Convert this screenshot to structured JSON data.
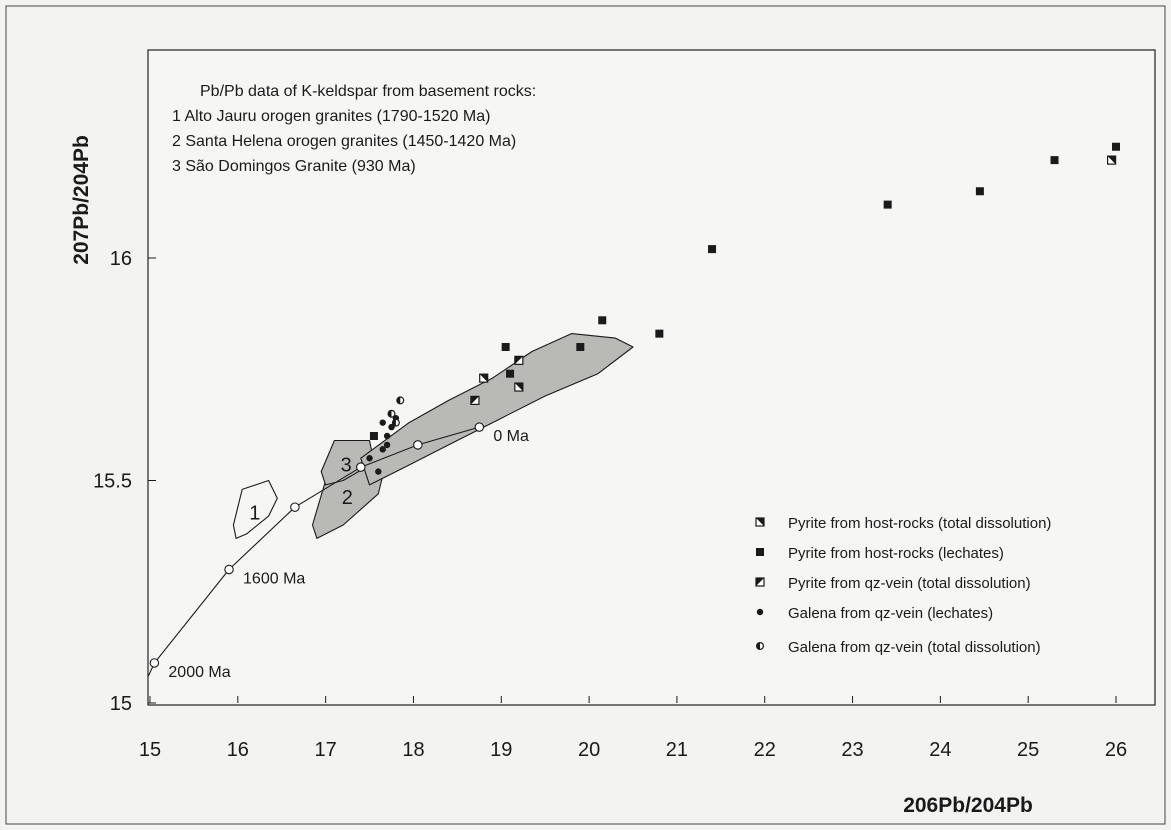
{
  "chart_data": {
    "type": "scatter",
    "title": "",
    "xlabel": "206Pb/204Pb",
    "ylabel": "207Pb/204Pb",
    "xlim": [
      15,
      26.5
    ],
    "ylim": [
      15,
      16.25
    ],
    "x_ticks": [
      "15",
      "16",
      "17",
      "18",
      "19",
      "20",
      "21",
      "22",
      "23",
      "24",
      "25",
      "26"
    ],
    "y_ticks": [
      "15",
      "15.5",
      "16"
    ],
    "grid": false,
    "legend_position": "bottom-right",
    "annotation_block": {
      "heading": "Pb/Pb data of K-keldspar from basement rocks:",
      "items": [
        "1  Alto Jauru orogen granites  (1790-1520 Ma)",
        "2  Santa Helena orogen granites (1450-1420 Ma)",
        "3  São Domingos Granite (930 Ma)"
      ]
    },
    "growth_curve": {
      "points": [
        {
          "x": 15.05,
          "y": 15.09,
          "label": "2000 Ma"
        },
        {
          "x": 15.9,
          "y": 15.3,
          "label": "1600 Ma"
        },
        {
          "x": 16.65,
          "y": 15.44,
          "label": ""
        },
        {
          "x": 17.4,
          "y": 15.53,
          "label": ""
        },
        {
          "x": 18.05,
          "y": 15.58,
          "label": ""
        },
        {
          "x": 18.75,
          "y": 15.62,
          "label": "0 Ma"
        }
      ]
    },
    "fields": [
      {
        "label": "1",
        "outline": [
          [
            15.95,
            15.4
          ],
          [
            16.05,
            15.48
          ],
          [
            16.35,
            15.5
          ],
          [
            16.45,
            15.46
          ],
          [
            16.35,
            15.42
          ],
          [
            16.1,
            15.38
          ],
          [
            15.98,
            15.37
          ]
        ],
        "fill": false
      },
      {
        "label": "2",
        "outline": [
          [
            16.85,
            15.4
          ],
          [
            17.0,
            15.5
          ],
          [
            17.35,
            15.57
          ],
          [
            17.7,
            15.55
          ],
          [
            17.6,
            15.47
          ],
          [
            17.2,
            15.4
          ],
          [
            16.9,
            15.37
          ]
        ],
        "fill": true
      },
      {
        "label": "3",
        "outline": [
          [
            16.95,
            15.52
          ],
          [
            17.1,
            15.59
          ],
          [
            17.5,
            15.59
          ],
          [
            17.55,
            15.54
          ],
          [
            17.2,
            15.5
          ],
          [
            17.0,
            15.49
          ]
        ],
        "fill": true
      },
      {
        "label": "",
        "outline": [
          [
            17.4,
            15.55
          ],
          [
            17.95,
            15.63
          ],
          [
            18.4,
            15.68
          ],
          [
            18.9,
            15.73
          ],
          [
            19.35,
            15.79
          ],
          [
            19.8,
            15.83
          ],
          [
            20.3,
            15.82
          ],
          [
            20.5,
            15.8
          ],
          [
            20.1,
            15.74
          ],
          [
            19.5,
            15.69
          ],
          [
            19.0,
            15.64
          ],
          [
            18.4,
            15.58
          ],
          [
            17.9,
            15.53
          ],
          [
            17.5,
            15.49
          ]
        ],
        "fill": true
      }
    ],
    "series": [
      {
        "name": "Pyrite from host-rocks (total dissolution)",
        "marker": "half-square",
        "x": [
          18.8,
          19.2,
          25.95
        ],
        "y": [
          15.73,
          15.71,
          16.22
        ]
      },
      {
        "name": "Pyrite from host-rocks (lechates)",
        "marker": "square",
        "x": [
          17.55,
          19.05,
          19.1,
          19.9,
          20.15,
          20.8,
          21.4,
          23.4,
          24.45,
          25.3,
          26.0
        ],
        "y": [
          15.6,
          15.8,
          15.74,
          15.8,
          15.86,
          15.83,
          16.02,
          16.12,
          16.15,
          16.22,
          16.25
        ]
      },
      {
        "name": "Pyrite from qz-vein (total dissolution)",
        "marker": "diag-square",
        "x": [
          18.7,
          19.2
        ],
        "y": [
          15.68,
          15.77
        ]
      },
      {
        "name": "Galena from qz-vein (lechates)",
        "marker": "dot",
        "x": [
          17.5,
          17.6,
          17.65,
          17.7,
          17.75,
          17.8,
          17.7,
          17.65
        ],
        "y": [
          15.55,
          15.52,
          15.57,
          15.6,
          15.62,
          15.64,
          15.58,
          15.63
        ]
      },
      {
        "name": "Galena from qz-vein (total dissolution)",
        "marker": "half-circle",
        "x": [
          17.75,
          17.8,
          17.85
        ],
        "y": [
          15.65,
          15.63,
          15.68
        ]
      }
    ]
  }
}
